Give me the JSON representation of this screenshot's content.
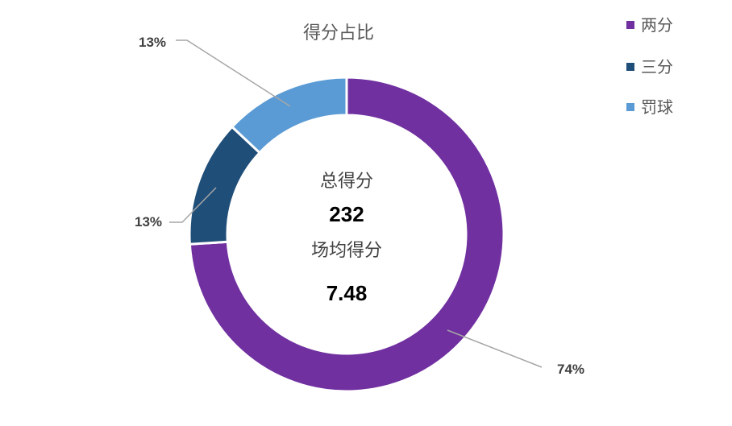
{
  "chart_data": {
    "type": "pie",
    "donut": true,
    "title": "得分占比",
    "categories": [
      "两分",
      "三分",
      "罚球"
    ],
    "values": [
      74,
      13,
      13
    ],
    "data_labels": [
      "74%",
      "13%",
      "13%"
    ],
    "colors": [
      "#7030A0",
      "#1F4E79",
      "#5B9BD5"
    ],
    "legend_position": "top-right",
    "center": {
      "total_label": "总得分",
      "total_value": "232",
      "avg_label": "场均得分",
      "avg_value": "7.48"
    }
  }
}
